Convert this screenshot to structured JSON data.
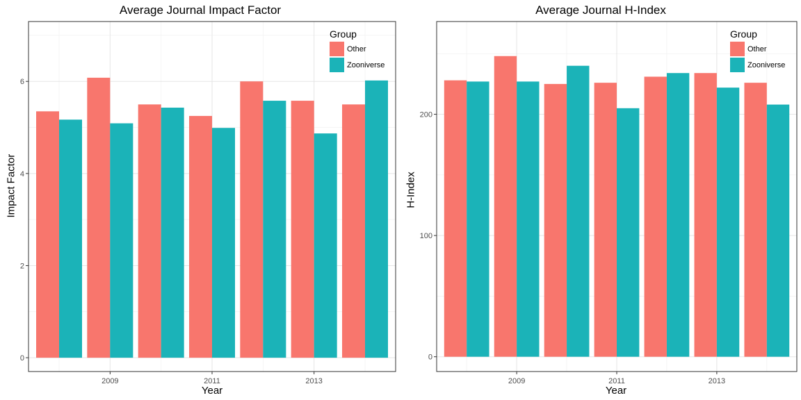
{
  "legend": {
    "title": "Group",
    "items": [
      {
        "label": "Other",
        "color": "#F8766D"
      },
      {
        "label": "Zooniverse",
        "color": "#1BB3B8"
      }
    ]
  },
  "chart_data": [
    {
      "type": "bar",
      "title": "Average Journal Impact Factor",
      "xlabel": "Year",
      "ylabel": "Impact Factor",
      "x": [
        2008,
        2009,
        2010,
        2011,
        2012,
        2013,
        2014
      ],
      "x_ticks": [
        2009,
        2011,
        2013
      ],
      "ylim": [
        -0.3,
        7.3
      ],
      "y_ticks": [
        0,
        2,
        4,
        6
      ],
      "grid": true,
      "legend_position": "top-right",
      "series": [
        {
          "name": "Other",
          "color": "#F8766D",
          "values": [
            5.35,
            6.08,
            5.5,
            5.25,
            6.0,
            5.58,
            5.5
          ]
        },
        {
          "name": "Zooniverse",
          "color": "#1BB3B8",
          "values": [
            5.17,
            5.09,
            5.43,
            4.99,
            5.58,
            4.87,
            6.02
          ]
        }
      ]
    },
    {
      "type": "bar",
      "title": "Average Journal H-Index",
      "xlabel": "Year",
      "ylabel": "H-Index",
      "x": [
        2008,
        2009,
        2010,
        2011,
        2012,
        2013,
        2014
      ],
      "x_ticks": [
        2009,
        2011,
        2013
      ],
      "ylim": [
        -12.2,
        276.5
      ],
      "y_ticks": [
        0,
        100,
        200
      ],
      "grid": true,
      "legend_position": "top-right",
      "series": [
        {
          "name": "Other",
          "color": "#F8766D",
          "values": [
            228,
            248,
            225,
            226,
            231,
            234,
            226
          ]
        },
        {
          "name": "Zooniverse",
          "color": "#1BB3B8",
          "values": [
            227,
            227,
            240,
            205,
            234,
            222,
            208
          ]
        }
      ]
    }
  ]
}
